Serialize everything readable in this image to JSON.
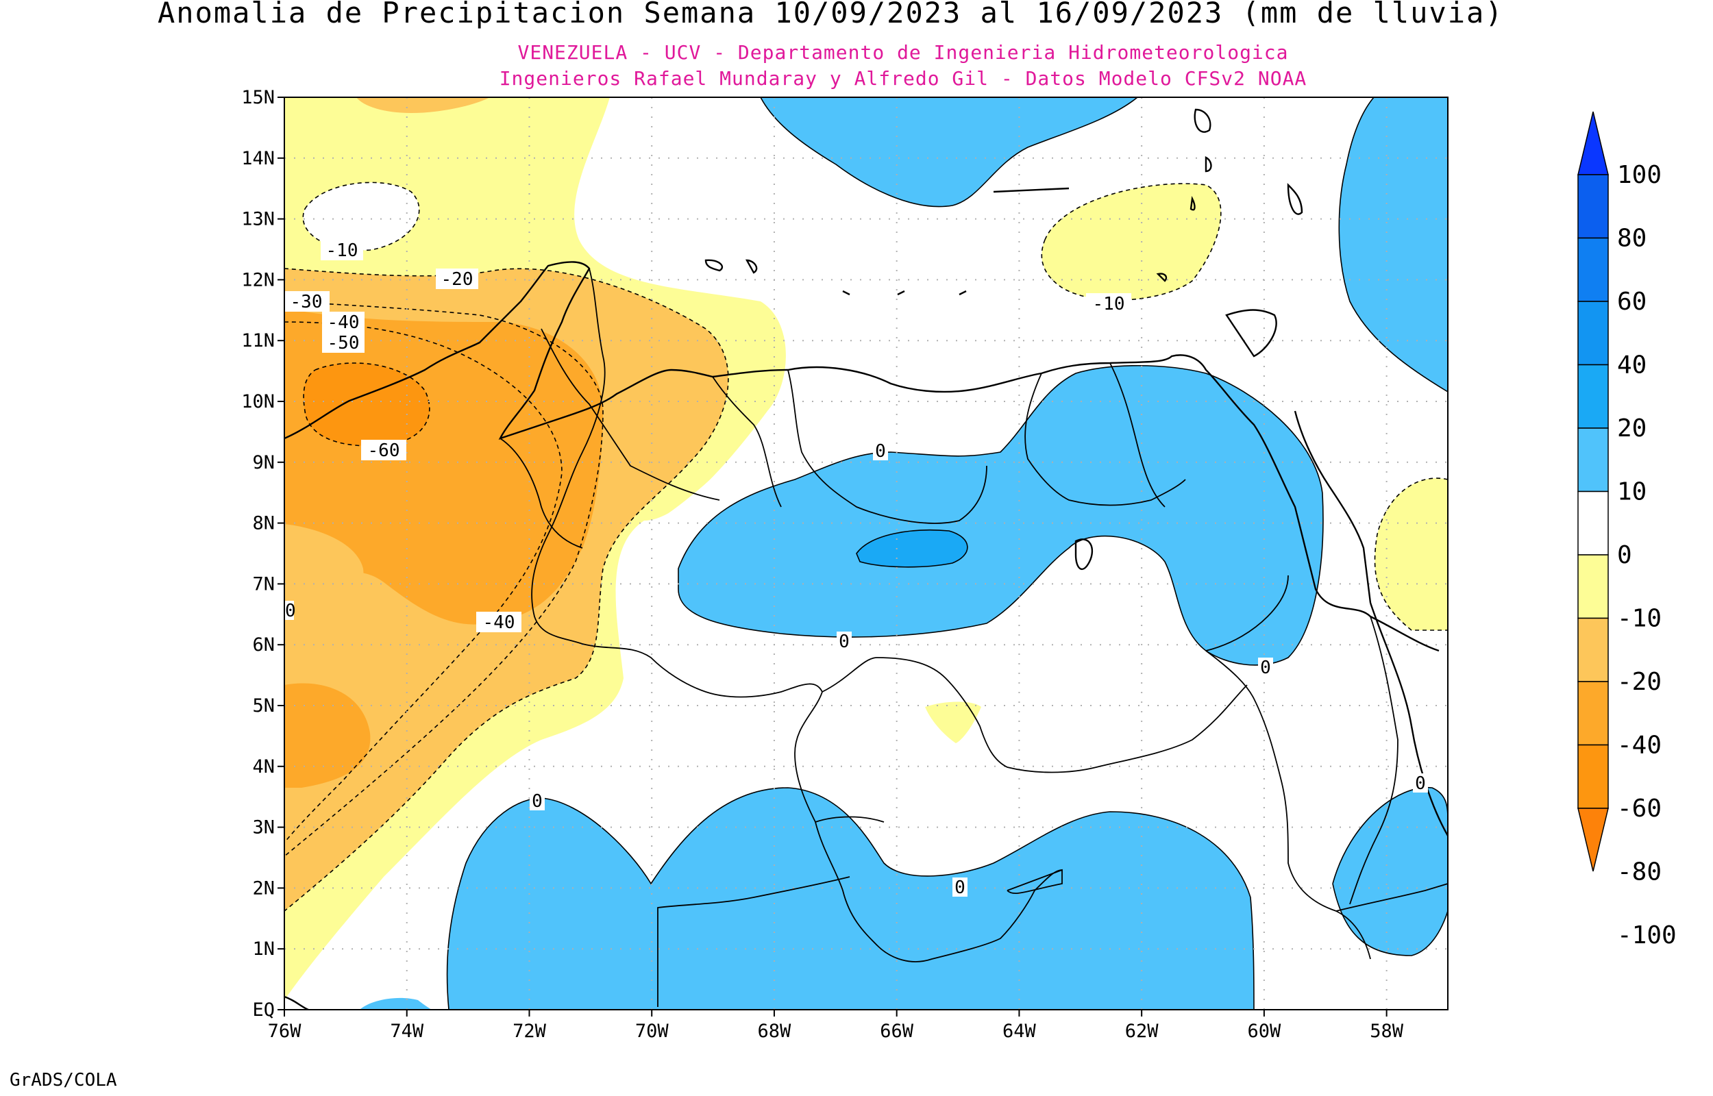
{
  "title": "Anomalia de Precipitacion Semana 10/09/2023 al 16/09/2023 (mm de lluvia)",
  "subtitle_1": "VENEZUELA - UCV - Departamento de Ingenieria Hidrometeorologica",
  "subtitle_2": "Ingenieros Rafael Mundaray y Alfredo Gil - Datos Modelo CFSv2 NOAA",
  "footer": "GrADS/COLA",
  "map": {
    "lon_range": [
      -76,
      -57
    ],
    "lat_range": [
      0,
      15
    ],
    "x_ticks": [
      "76W",
      "74W",
      "72W",
      "70W",
      "68W",
      "66W",
      "64W",
      "62W",
      "60W",
      "58W"
    ],
    "y_ticks": [
      "EQ",
      "1N",
      "2N",
      "3N",
      "4N",
      "5N",
      "6N",
      "7N",
      "8N",
      "9N",
      "10N",
      "11N",
      "12N",
      "13N",
      "14N",
      "15N"
    ],
    "grid": true
  },
  "colorbar": {
    "labels": [
      "100",
      "80",
      "60",
      "40",
      "20",
      "10",
      "0",
      "-10",
      "-20",
      "-40",
      "-60",
      "-80",
      "-100"
    ],
    "colors": {
      "gt80": "#0a37ff",
      "60_80": "#0b5fef",
      "40_60": "#0f7ff2",
      "20_40": "#1295f2",
      "10_20": "#1aa9f5",
      "0_10": "#50c3fb",
      "m10_0": "#ffffff",
      "m20_m10": "#fdfd96",
      "m40_m20": "#fdc65a",
      "m60_m40": "#fda92a",
      "m80_m60": "#fd9610",
      "lt_m80": "#fd820a"
    }
  },
  "contour_labels": {
    "c1": "-10",
    "c2": "-20",
    "c3": "-30",
    "c4": "-40",
    "c5": "-50",
    "c6": "-60",
    "c7": "-40",
    "c8": "-10",
    "c9": "0",
    "c10": "0",
    "c11": "0",
    "c12": "0",
    "c13": "0",
    "c14": "0",
    "c15": "0"
  }
}
